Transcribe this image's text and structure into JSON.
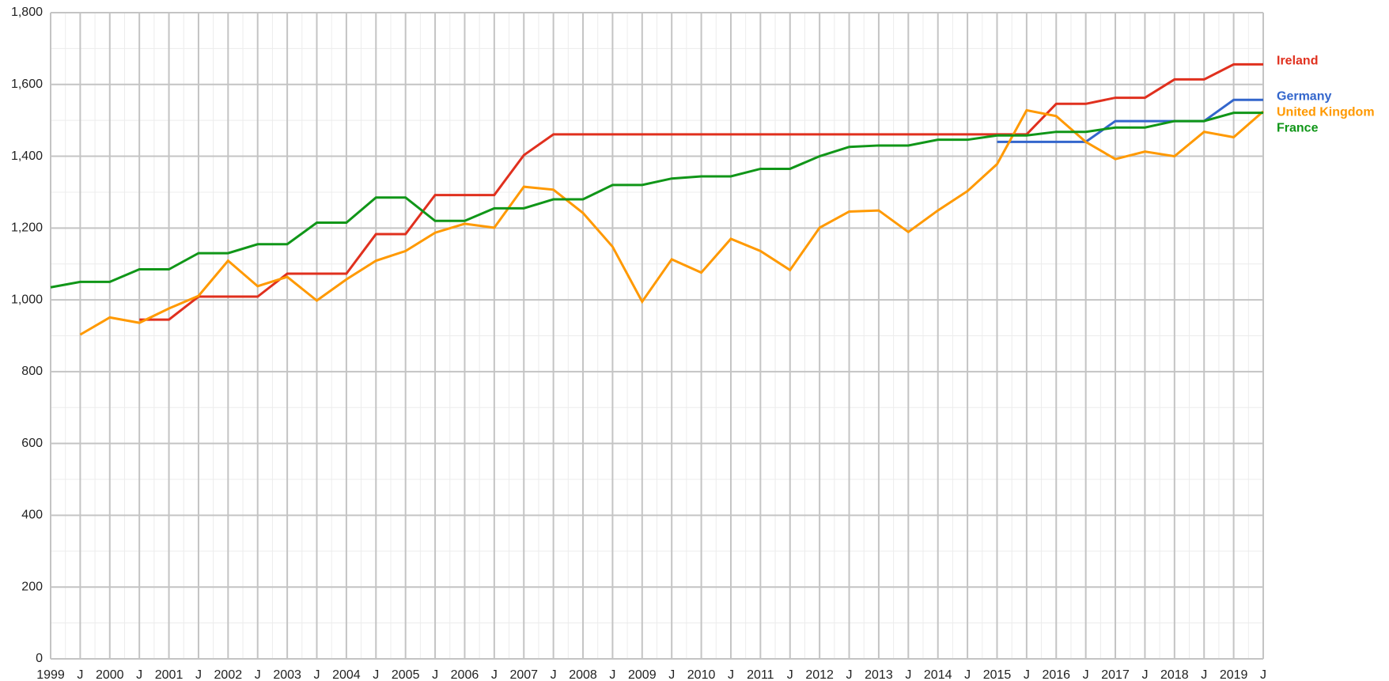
{
  "chart_data": {
    "type": "line",
    "categories": [
      "1999",
      "J",
      "2000",
      "J",
      "2001",
      "J",
      "2002",
      "J",
      "2003",
      "J",
      "2004",
      "J",
      "2005",
      "J",
      "2006",
      "J",
      "2007",
      "J",
      "2008",
      "J",
      "2009",
      "J",
      "2010",
      "J",
      "2011",
      "J",
      "2012",
      "J",
      "2013",
      "J",
      "2014",
      "J",
      "2015",
      "J",
      "2016",
      "J",
      "2017",
      "J",
      "2018",
      "J",
      "2019",
      "J"
    ],
    "series": [
      {
        "name": "Ireland",
        "color": "#e0301e",
        "values": [
          null,
          null,
          null,
          945,
          945,
          1009,
          1009,
          1009,
          1073,
          1073,
          1073,
          1183,
          1183,
          1292,
          1292,
          1292,
          1403,
          1461,
          1461,
          1461,
          1461,
          1461,
          1461,
          1461,
          1461,
          1461,
          1461,
          1461,
          1461,
          1461,
          1461,
          1461,
          1461,
          1461,
          1546,
          1546,
          1563,
          1563,
          1614,
          1614,
          1656,
          1656
        ]
      },
      {
        "name": "Germany",
        "color": "#3366cc",
        "values": [
          null,
          null,
          null,
          null,
          null,
          null,
          null,
          null,
          null,
          null,
          null,
          null,
          null,
          null,
          null,
          null,
          null,
          null,
          null,
          null,
          null,
          null,
          null,
          null,
          null,
          null,
          null,
          null,
          null,
          null,
          null,
          null,
          1440,
          1440,
          1440,
          1440,
          1498,
          1498,
          1498,
          1498,
          1557,
          1557
        ]
      },
      {
        "name": "United Kingdom",
        "color": "#ff9900",
        "values": [
          null,
          903,
          951,
          936,
          976,
          1011,
          1109,
          1038,
          1064,
          998,
          1057,
          1109,
          1136,
          1187,
          1212,
          1201,
          1315,
          1307,
          1242,
          1148,
          995,
          1113,
          1076,
          1170,
          1136,
          1083,
          1201,
          1246,
          1249,
          1189,
          1249,
          1303,
          1378,
          1528,
          1512,
          1440,
          1392,
          1413,
          1400,
          1468,
          1453,
          1525
        ]
      },
      {
        "name": "France",
        "color": "#109618",
        "values": [
          1035,
          1050,
          1050,
          1085,
          1085,
          1130,
          1130,
          1155,
          1155,
          1215,
          1215,
          1285,
          1285,
          1220,
          1220,
          1255,
          1255,
          1280,
          1280,
          1320,
          1320,
          1338,
          1344,
          1344,
          1365,
          1365,
          1400,
          1426,
          1430,
          1430,
          1446,
          1446,
          1458,
          1458,
          1468,
          1468,
          1480,
          1480,
          1498,
          1498,
          1521,
          1521
        ]
      }
    ],
    "ylim": [
      0,
      1800
    ],
    "yticks": [
      0,
      200,
      400,
      600,
      800,
      {
        "value": 1000,
        "label": "1,000"
      },
      {
        "value": 1200,
        "label": "1,200"
      },
      {
        "value": 1400,
        "label": "1,400"
      },
      {
        "value": 1600,
        "label": "1,600"
      },
      {
        "value": 1800,
        "label": "1,800"
      }
    ],
    "grid": true,
    "legend": "right"
  }
}
